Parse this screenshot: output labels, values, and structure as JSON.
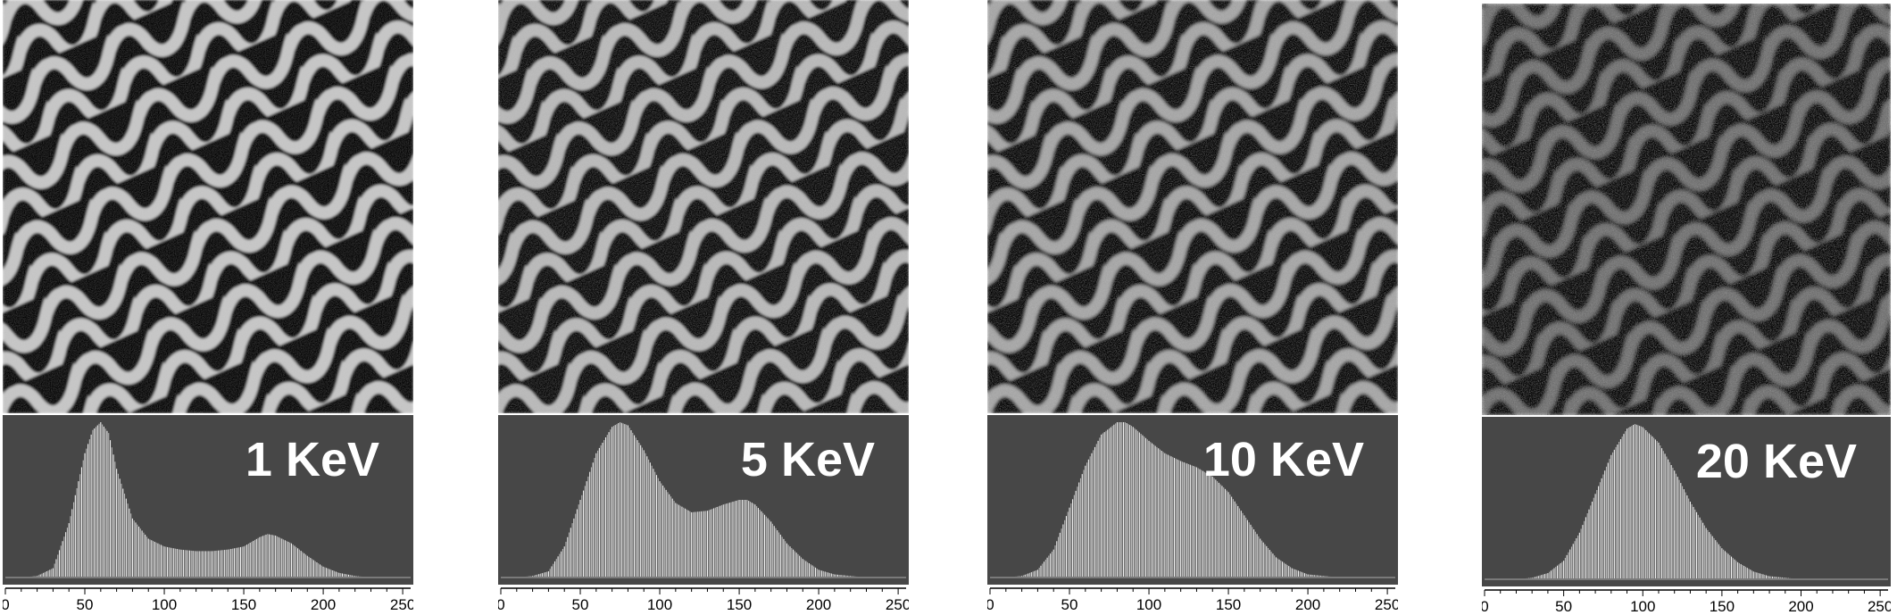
{
  "figure": {
    "panels": [
      {
        "energy_label": "1 KeV",
        "contrast": "high"
      },
      {
        "energy_label": "5 KeV",
        "contrast": "medium-high"
      },
      {
        "energy_label": "10 KeV",
        "contrast": "medium"
      },
      {
        "energy_label": "20 KeV",
        "contrast": "low"
      }
    ],
    "axis_ticks": [
      "0",
      "50",
      "100",
      "150",
      "200",
      "250"
    ]
  },
  "chart_data": [
    {
      "type": "bar",
      "title": "",
      "legend": "1 KeV",
      "xlim": [
        0,
        255
      ],
      "x": [
        0,
        10,
        20,
        30,
        40,
        50,
        55,
        60,
        65,
        70,
        80,
        90,
        100,
        110,
        120,
        130,
        140,
        150,
        160,
        165,
        170,
        180,
        190,
        200,
        210,
        220,
        230,
        240,
        255
      ],
      "values": [
        0,
        0,
        0.01,
        0.06,
        0.35,
        0.8,
        0.95,
        1.0,
        0.93,
        0.7,
        0.38,
        0.25,
        0.2,
        0.18,
        0.17,
        0.17,
        0.18,
        0.2,
        0.26,
        0.28,
        0.27,
        0.22,
        0.14,
        0.07,
        0.03,
        0.01,
        0,
        0,
        0
      ]
    },
    {
      "type": "bar",
      "title": "",
      "legend": "5 KeV",
      "xlim": [
        0,
        255
      ],
      "x": [
        0,
        10,
        20,
        30,
        40,
        50,
        60,
        70,
        75,
        80,
        90,
        100,
        110,
        120,
        130,
        140,
        150,
        155,
        160,
        170,
        180,
        190,
        200,
        210,
        220,
        230,
        240,
        255
      ],
      "values": [
        0,
        0,
        0.01,
        0.04,
        0.2,
        0.5,
        0.8,
        0.97,
        1.0,
        0.98,
        0.82,
        0.62,
        0.48,
        0.42,
        0.43,
        0.47,
        0.5,
        0.5,
        0.47,
        0.36,
        0.22,
        0.12,
        0.05,
        0.02,
        0.01,
        0,
        0,
        0
      ]
    },
    {
      "type": "bar",
      "title": "",
      "legend": "10 KeV",
      "xlim": [
        0,
        255
      ],
      "x": [
        0,
        10,
        20,
        30,
        40,
        50,
        60,
        70,
        80,
        85,
        90,
        100,
        110,
        120,
        130,
        140,
        150,
        160,
        170,
        180,
        190,
        200,
        210,
        220,
        230,
        240,
        255
      ],
      "values": [
        0,
        0,
        0.01,
        0.05,
        0.18,
        0.45,
        0.72,
        0.92,
        1.0,
        1.0,
        0.97,
        0.88,
        0.8,
        0.75,
        0.71,
        0.65,
        0.55,
        0.4,
        0.25,
        0.13,
        0.06,
        0.02,
        0.01,
        0,
        0,
        0,
        0
      ]
    },
    {
      "type": "bar",
      "title": "",
      "legend": "20 KeV",
      "xlim": [
        0,
        255
      ],
      "x": [
        0,
        20,
        30,
        40,
        50,
        60,
        70,
        80,
        90,
        95,
        100,
        110,
        120,
        130,
        140,
        150,
        160,
        170,
        180,
        190,
        200,
        220,
        255
      ],
      "values": [
        0,
        0,
        0.01,
        0.04,
        0.12,
        0.3,
        0.55,
        0.8,
        0.97,
        1.0,
        0.98,
        0.88,
        0.7,
        0.5,
        0.33,
        0.2,
        0.11,
        0.05,
        0.02,
        0.01,
        0,
        0,
        0
      ]
    }
  ]
}
